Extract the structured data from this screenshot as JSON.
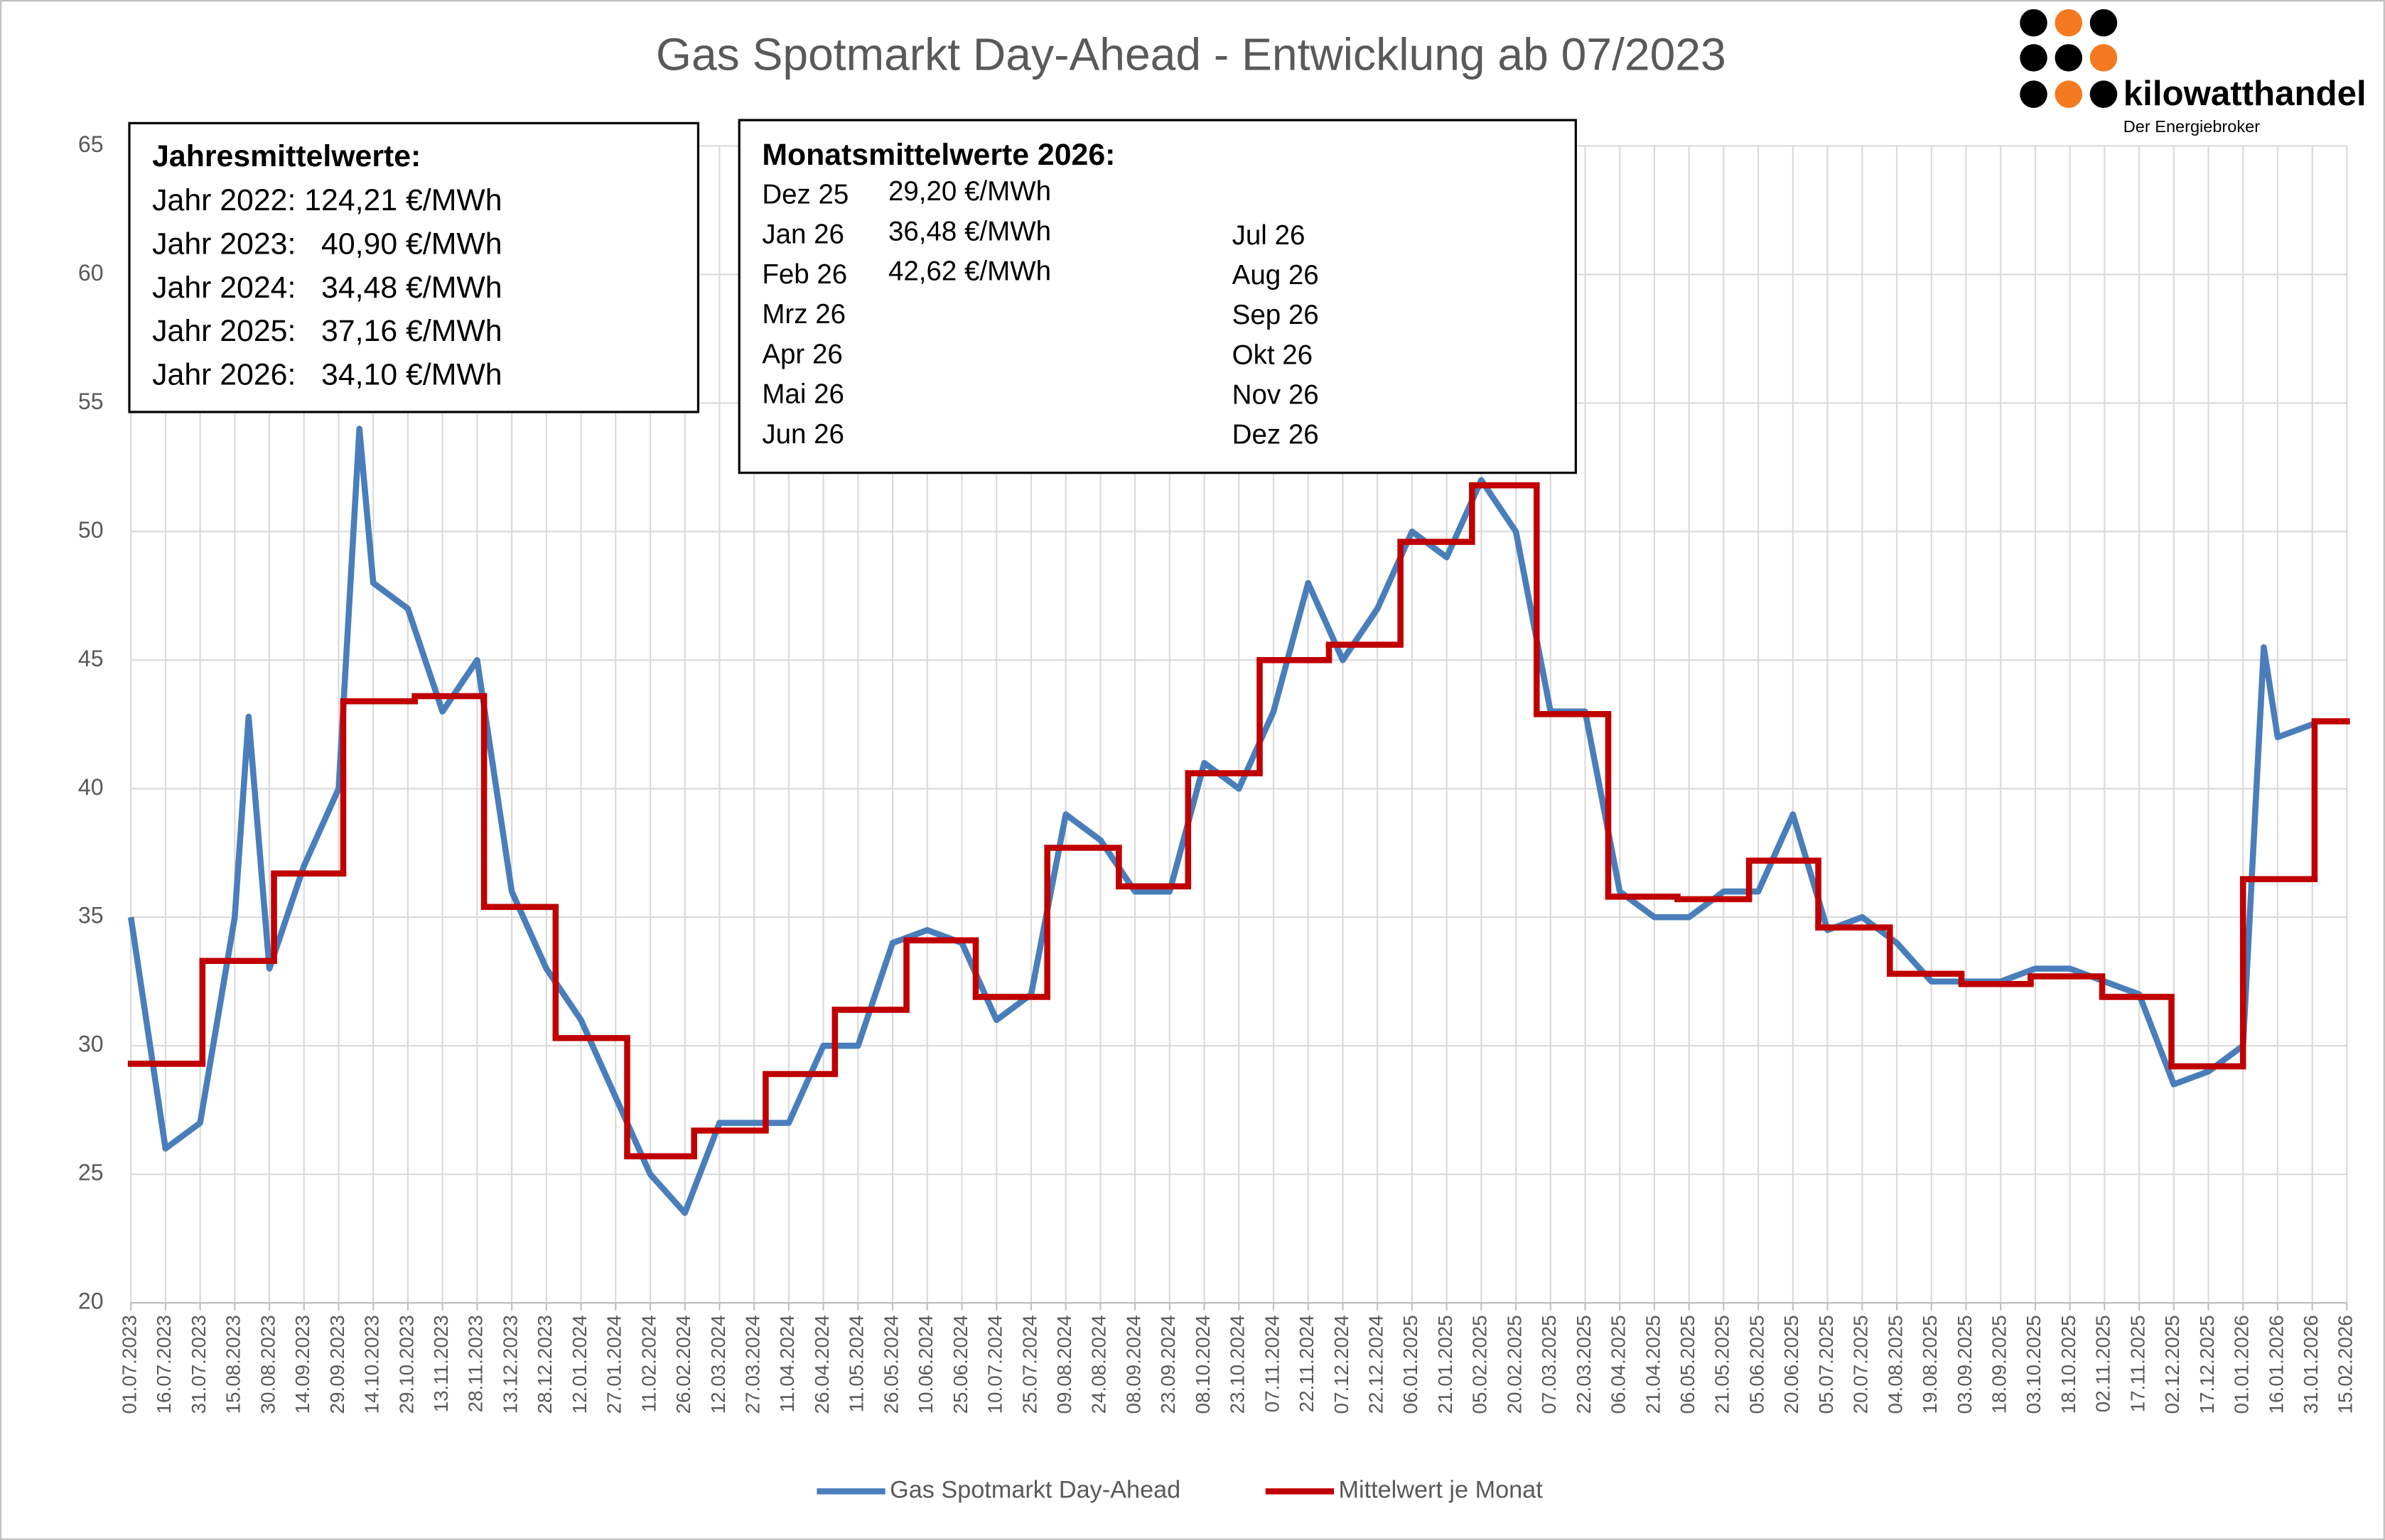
{
  "chart_data": {
    "type": "line",
    "title": "Gas Spotmarkt Day-Ahead  - Entwicklung ab 07/2023",
    "xlim": [
      "01.07.2023",
      "15.02.2026"
    ],
    "xticks": [
      "01.07.2023",
      "16.07.2023",
      "31.07.2023",
      "15.08.2023",
      "30.08.2023",
      "14.09.2023",
      "29.09.2023",
      "14.10.2023",
      "29.10.2023",
      "13.11.2023",
      "28.11.2023",
      "13.12.2023",
      "28.12.2023",
      "12.01.2024",
      "27.01.2024",
      "11.02.2024",
      "26.02.2024",
      "12.03.2024",
      "27.03.2024",
      "11.04.2024",
      "26.04.2024",
      "11.05.2024",
      "26.05.2024",
      "10.06.2024",
      "25.06.2024",
      "10.07.2024",
      "25.07.2024",
      "09.08.2024",
      "24.08.2024",
      "08.09.2024",
      "23.09.2024",
      "08.10.2024",
      "23.10.2024",
      "07.11.2024",
      "22.11.2024",
      "07.12.2024",
      "22.12.2024",
      "06.01.2025",
      "21.01.2025",
      "05.02.2025",
      "20.02.2025",
      "07.03.2025",
      "22.03.2025",
      "06.04.2025",
      "21.04.2025",
      "06.05.2025",
      "21.05.2025",
      "05.06.2025",
      "20.06.2025",
      "05.07.2025",
      "20.07.2025",
      "04.08.2025",
      "19.08.2025",
      "03.09.2025",
      "18.09.2025",
      "03.10.2025",
      "18.10.2025",
      "02.11.2025",
      "17.11.2025",
      "02.12.2025",
      "17.12.2025",
      "01.01.2026",
      "16.01.2026",
      "31.01.2026",
      "15.02.2026"
    ],
    "ylim": [
      20,
      65
    ],
    "yticks": [
      20,
      25,
      30,
      35,
      40,
      45,
      50,
      55,
      60,
      65
    ],
    "grid": true,
    "legend": "bottom",
    "series": [
      {
        "name": "Gas Spotmarkt Day-Ahead",
        "color": "#4a7ebb",
        "style": "line",
        "x": [
          "01.07.2023",
          "16.07.2023",
          "31.07.2023",
          "15.08.2023",
          "21.08.2023",
          "30.08.2023",
          "14.09.2023",
          "29.09.2023",
          "08.10.2023",
          "14.10.2023",
          "29.10.2023",
          "13.11.2023",
          "28.11.2023",
          "13.12.2023",
          "28.12.2023",
          "12.01.2024",
          "27.01.2024",
          "11.02.2024",
          "26.02.2024",
          "12.03.2024",
          "27.03.2024",
          "11.04.2024",
          "26.04.2024",
          "11.05.2024",
          "26.05.2024",
          "10.06.2024",
          "25.06.2024",
          "10.07.2024",
          "25.07.2024",
          "09.08.2024",
          "24.08.2024",
          "08.09.2024",
          "23.09.2024",
          "08.10.2024",
          "23.10.2024",
          "07.11.2024",
          "22.11.2024",
          "07.12.2024",
          "22.12.2024",
          "06.01.2025",
          "21.01.2025",
          "05.02.2025",
          "20.02.2025",
          "07.03.2025",
          "22.03.2025",
          "06.04.2025",
          "21.04.2025",
          "06.05.2025",
          "21.05.2025",
          "05.06.2025",
          "20.06.2025",
          "05.07.2025",
          "20.07.2025",
          "04.08.2025",
          "19.08.2025",
          "03.09.2025",
          "18.09.2025",
          "03.10.2025",
          "18.10.2025",
          "02.11.2025",
          "17.11.2025",
          "02.12.2025",
          "17.12.2025",
          "01.01.2026",
          "10.01.2026",
          "16.01.2026",
          "31.01.2026"
        ],
        "values": [
          35,
          26,
          27,
          35,
          42.8,
          33,
          37,
          40,
          54,
          48,
          47,
          43,
          45,
          36,
          33,
          31,
          28,
          25,
          23.5,
          27,
          27,
          27,
          30,
          30,
          34,
          34.5,
          34,
          31,
          32,
          39,
          38,
          36,
          36,
          41,
          40,
          43,
          48,
          45,
          47,
          50,
          49,
          52,
          50,
          43,
          43,
          36,
          35,
          35,
          36,
          36,
          39,
          34.5,
          35,
          34,
          32.5,
          32.5,
          32.5,
          33,
          33,
          32.5,
          32,
          28.5,
          29,
          30,
          45.5,
          42,
          42.5
        ]
      },
      {
        "name": "Mittelwert je Monat",
        "color": "#c00000",
        "style": "step",
        "x": [
          "01.07.2023",
          "01.08.2023",
          "01.09.2023",
          "01.10.2023",
          "01.11.2023",
          "01.12.2023",
          "01.01.2024",
          "01.02.2024",
          "01.03.2024",
          "01.04.2024",
          "01.05.2024",
          "01.06.2024",
          "01.07.2024",
          "01.08.2024",
          "01.09.2024",
          "01.10.2024",
          "01.11.2024",
          "01.12.2024",
          "01.01.2025",
          "01.02.2025",
          "01.03.2025",
          "01.04.2025",
          "01.05.2025",
          "01.06.2025",
          "01.07.2025",
          "01.08.2025",
          "01.09.2025",
          "01.10.2025",
          "01.11.2025",
          "01.12.2025",
          "01.01.2026",
          "01.02.2026"
        ],
        "values": [
          29.3,
          33.3,
          36.7,
          43.4,
          43.6,
          35.4,
          30.3,
          25.7,
          26.7,
          28.9,
          31.4,
          34.1,
          31.9,
          37.7,
          36.2,
          40.6,
          45.0,
          45.6,
          49.6,
          51.8,
          42.9,
          35.8,
          35.7,
          37.2,
          34.6,
          32.8,
          32.4,
          32.7,
          31.9,
          29.2,
          36.48,
          42.62
        ]
      }
    ],
    "annotations": {
      "yearly_box": {
        "title": "Jahresmittelwerte:",
        "lines": [
          "Jahr 2022: 124,21 €/MWh",
          "Jahr 2023:   40,90 €/MWh",
          "Jahr 2024:   34,48 €/MWh",
          "Jahr 2025:   37,16 €/MWh",
          "Jahr 2026:   34,10 €/MWh"
        ]
      },
      "monthly_box": {
        "title": "Monatsmittelwerte 2026:",
        "left": [
          {
            "label": "Dez 25",
            "value": "29,20 €/MWh"
          },
          {
            "label": "Jan 26",
            "value": "36,48 €/MWh"
          },
          {
            "label": "Feb 26",
            "value": "42,62 €/MWh"
          },
          {
            "label": "Mrz 26"
          },
          {
            "label": "Apr 26"
          },
          {
            "label": "Mai 26"
          },
          {
            "label": "Jun 26"
          }
        ],
        "right": [
          "Jul 26",
          "Aug 26",
          "Sep 26",
          "Okt 26",
          "Nov 26",
          "Dez 26"
        ]
      }
    },
    "logo": {
      "name": "kilowatthandel",
      "tagline": "Der Energiebroker"
    }
  }
}
